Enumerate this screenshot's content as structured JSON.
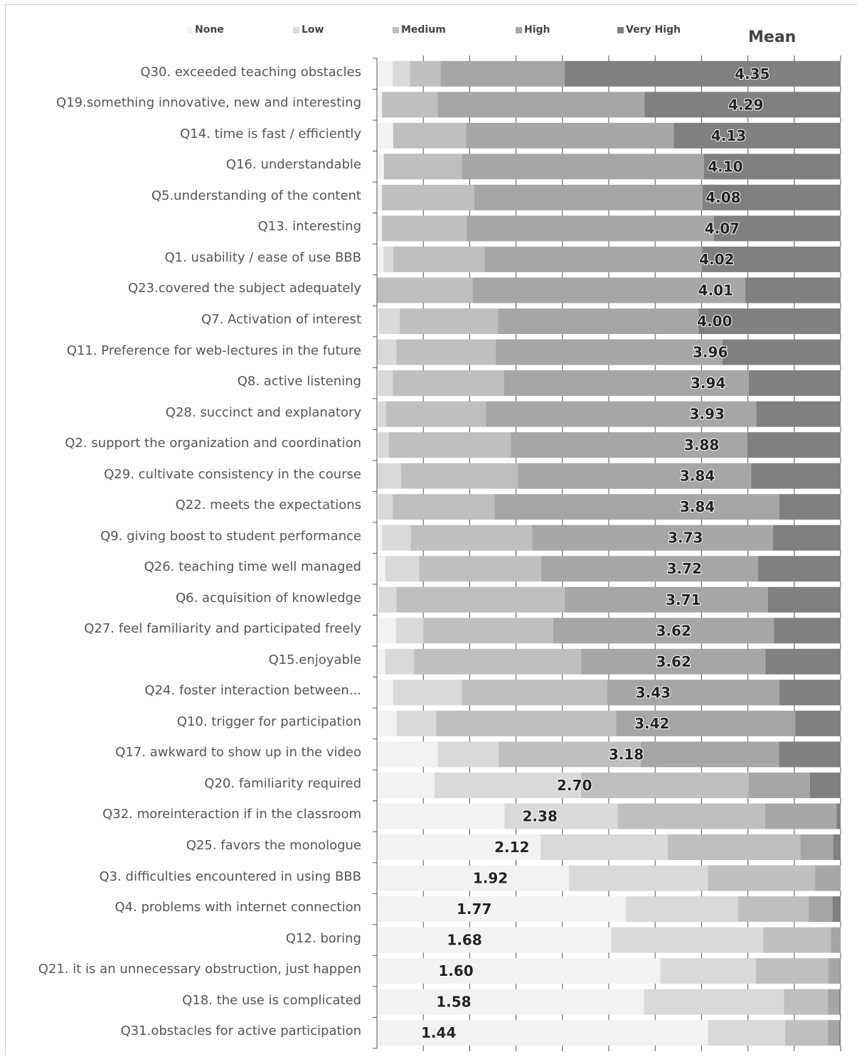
{
  "legend": {
    "items": [
      {
        "label": "None",
        "color": "#f2f2f2"
      },
      {
        "label": "Low",
        "color": "#d9d9d9"
      },
      {
        "label": "Medium",
        "color": "#bfbfbf"
      },
      {
        "label": "High",
        "color": "#a6a6a6"
      },
      {
        "label": "Very High",
        "color": "#808080"
      }
    ],
    "mean_header": "Mean"
  },
  "chart_data": {
    "type": "bar",
    "stacked": true,
    "orientation": "horizontal",
    "value_unit": "percent of responses",
    "xlim": [
      0,
      100
    ],
    "legend_position": "top",
    "grid": false,
    "series_names": [
      "None",
      "Low",
      "Medium",
      "High",
      "Very High"
    ],
    "rows": [
      {
        "label": "Q30. exceeded teaching obstacles",
        "mean": "4.35",
        "values": [
          3.4,
          3.7,
          6.6,
          26.8,
          59.5
        ]
      },
      {
        "label": "Q19.something innovative, new and interesting",
        "mean": "4.29",
        "values": [
          1.1,
          0,
          12.0,
          44.6,
          42.3
        ]
      },
      {
        "label": "Q14. time is fast / efficiently",
        "mean": "4.13",
        "values": [
          3.5,
          0,
          15.7,
          44.8,
          36.0
        ]
      },
      {
        "label": "Q16.  understandable",
        "mean": "4.10",
        "values": [
          1.5,
          0,
          16.8,
          52.2,
          29.5
        ]
      },
      {
        "label": "Q5.understanding of the content",
        "mean": "4.08",
        "values": [
          1.1,
          0,
          19.9,
          49.2,
          29.8
        ]
      },
      {
        "label": "Q13. interesting",
        "mean": "4.07",
        "values": [
          1.1,
          0,
          18.2,
          53.4,
          27.3
        ]
      },
      {
        "label": "Q1. usability / ease of use BBB",
        "mean": "4.02",
        "values": [
          1.4,
          2.1,
          19.7,
          46.9,
          29.9
        ]
      },
      {
        "label": "Q23.covered the subject adequately",
        "mean": "4.01",
        "values": [
          0,
          0,
          20.6,
          58.8,
          20.6
        ]
      },
      {
        "label": "Q7. Activation of interest",
        "mean": "4.00",
        "values": [
          0.4,
          4.5,
          21.2,
          43.3,
          30.6
        ]
      },
      {
        "label": "Q11. Preference for web-lectures in the future",
        "mean": "3.96",
        "values": [
          0,
          4.2,
          21.4,
          48.9,
          25.5
        ]
      },
      {
        "label": "Q8. active listening",
        "mean": "3.94",
        "values": [
          0.3,
          3.1,
          24.0,
          52.8,
          19.8
        ]
      },
      {
        "label": "Q28. succinct and explanatory",
        "mean": "3.93",
        "values": [
          0.3,
          1.7,
          21.5,
          58.3,
          18.2
        ]
      },
      {
        "label": "Q2. support the organization and coordination",
        "mean": "3.88",
        "values": [
          0.3,
          2.3,
          26.3,
          51.0,
          20.1
        ]
      },
      {
        "label": "Q29. cultivate consistency in the course",
        "mean": "3.84",
        "values": [
          0,
          5.2,
          25.2,
          50.3,
          19.3
        ]
      },
      {
        "label": "Q22. meets the expectations",
        "mean": "3.84",
        "values": [
          0.3,
          3.1,
          22.0,
          61.4,
          13.2
        ]
      },
      {
        "label": "Q9. giving boost to student performance",
        "mean": "3.73",
        "values": [
          1.1,
          6.2,
          26.2,
          51.9,
          14.6
        ]
      },
      {
        "label": "Q26.  teaching time well managed",
        "mean": "3.72",
        "values": [
          1.8,
          7.3,
          26.3,
          46.8,
          17.8
        ]
      },
      {
        "label": "Q6. acquisition of knowledge",
        "mean": "3.71",
        "values": [
          0.4,
          3.8,
          36.3,
          43.8,
          15.7
        ]
      },
      {
        "label": "Q27. feel familiarity and participated freely",
        "mean": "3.62",
        "values": [
          4.1,
          5.9,
          28.0,
          47.6,
          14.4
        ]
      },
      {
        "label": "Q15.enjoyable",
        "mean": "3.62",
        "values": [
          1.8,
          6.2,
          36.1,
          39.7,
          16.2
        ]
      },
      {
        "label": "Q24. foster interaction between...",
        "mean": "3.43",
        "values": [
          3.5,
          14.8,
          31.4,
          37.1,
          13.2
        ]
      },
      {
        "label": "Q10. trigger for participation",
        "mean": "3.42",
        "values": [
          4.2,
          8.6,
          38.8,
          38.6,
          9.8
        ]
      },
      {
        "label": "Q17. awkward to show up in the video",
        "mean": "3.18",
        "values": [
          13.1,
          13.1,
          30.7,
          29.8,
          13.3
        ]
      },
      {
        "label": "Q20. familiarity required",
        "mean": "2.70",
        "values": [
          12.4,
          31.6,
          36.1,
          13.3,
          6.6
        ]
      },
      {
        "label": "Q32. moreinteraction if in the classroom",
        "mean": "2.38",
        "values": [
          27.5,
          24.4,
          31.8,
          15.4,
          0.9
        ]
      },
      {
        "label": "Q25. favors the monologue",
        "mean": "2.12",
        "values": [
          35.3,
          27.4,
          28.6,
          7.1,
          1.6
        ]
      },
      {
        "label": "Q3. difficulties encountered in using BBB",
        "mean": "1.92",
        "values": [
          41.4,
          30.0,
          23.1,
          5.5,
          0
        ]
      },
      {
        "label": "Q4. problems with internet connection",
        "mean": "1.77",
        "values": [
          53.7,
          24.2,
          15.2,
          5.1,
          1.8
        ]
      },
      {
        "label": "Q12. boring",
        "mean": "1.68",
        "values": [
          50.5,
          32.8,
          14.6,
          2.1,
          0
        ]
      },
      {
        "label": "Q21. it is an unnecessary obstruction, just  happen",
        "mean": "1.60",
        "values": [
          61.1,
          20.6,
          15.6,
          2.5,
          0.2
        ]
      },
      {
        "label": "Q18. the use is complicated",
        "mean": "1.58",
        "values": [
          57.6,
          30.2,
          9.4,
          2.5,
          0.3
        ]
      },
      {
        "label": "Q31.obstacles for active participation",
        "mean": "1.44",
        "values": [
          71.4,
          16.6,
          9.2,
          2.5,
          0.3
        ]
      }
    ]
  }
}
